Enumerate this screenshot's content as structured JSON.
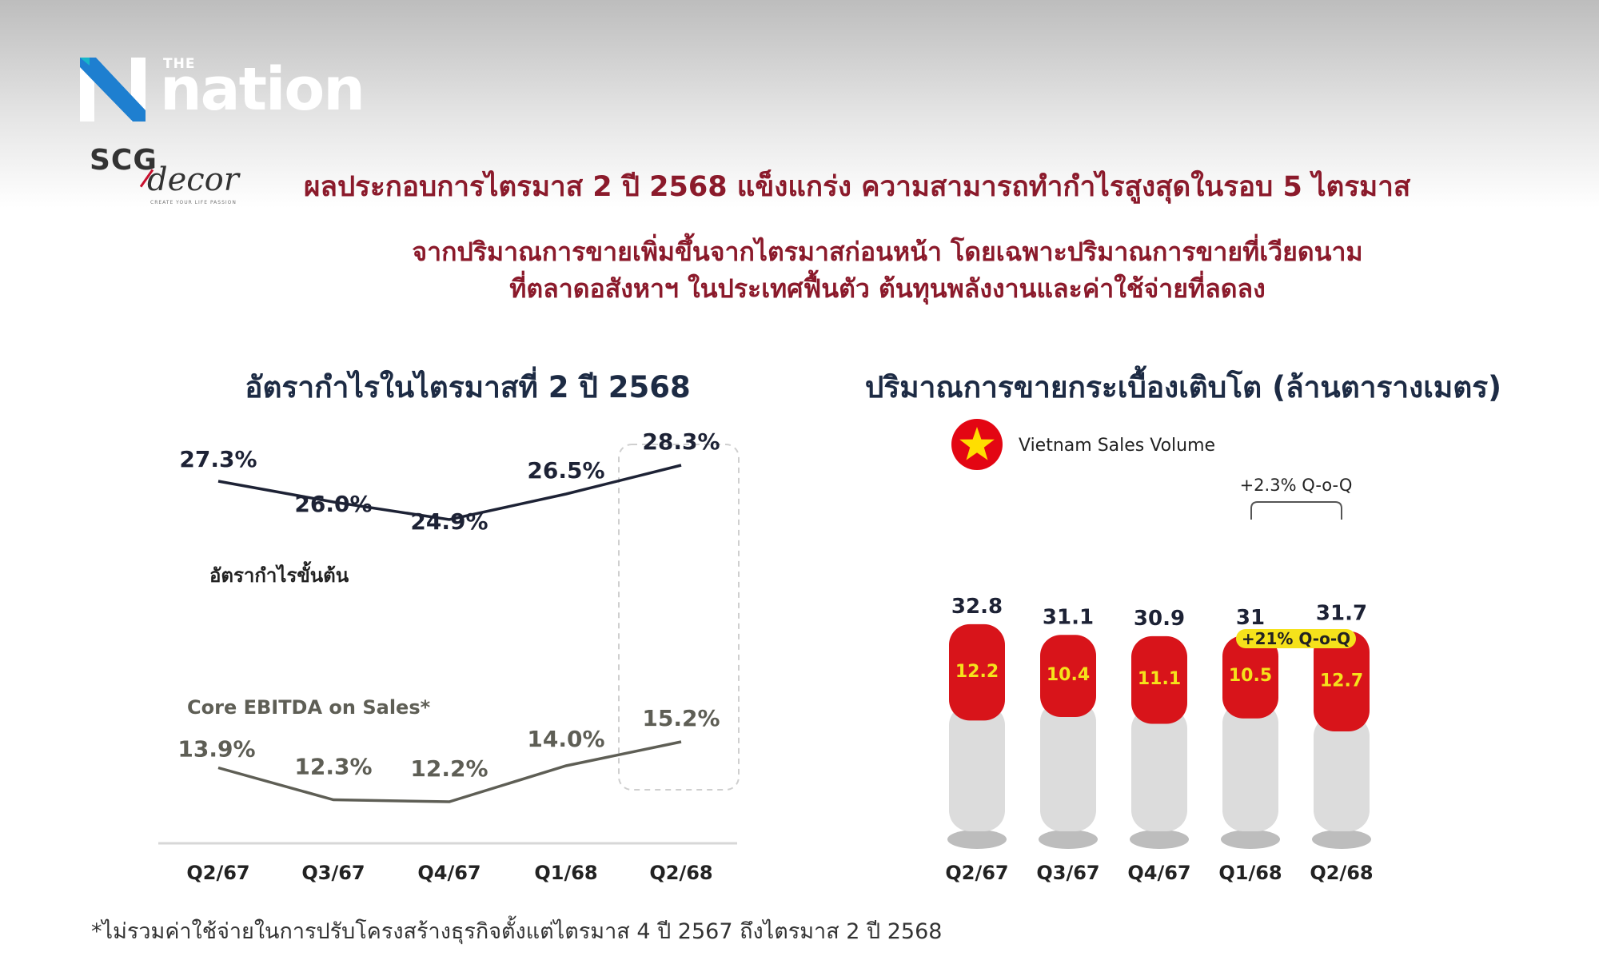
{
  "brand": {
    "the": "THE",
    "name": "nation"
  },
  "company": {
    "scg": "SCG",
    "decor": "decor",
    "tagline": "CREATE YOUR LIFE PASSION"
  },
  "headline": "ผลประกอบการไตรมาส 2 ปี 2568 แข็งแกร่ง ความสามารถทำกำไรสูงสุดในรอบ 5 ไตรมาส",
  "subheadline": [
    "จากปริมาณการขายเพิ่มขึ้นจากไตรมาสก่อนหน้า โดยเฉพาะปริมาณการขายที่เวียดนาม",
    "ที่ตลาดอสังหาฯ ในประเทศฟื้นตัว ต้นทุนพลังงานและค่าใช้จ่ายที่ลดลง"
  ],
  "footnote": "*ไม่รวมค่าใช้จ่ายในการปรับโครงสร้างธุรกิจตั้งแต่ไตรมาส 4 ปี 2567 ถึงไตรมาส 2 ปี 2568",
  "colors": {
    "headline": "#8b1a2b",
    "red": "#d8141a",
    "gray_bar": "#d9d9d9",
    "highlight": "#f5e21b",
    "ebitda_line": "#5e5e55"
  },
  "chart_data": [
    {
      "type": "line",
      "title": "อัตรากำไรในไตรมาสที่ 2 ปี 2568",
      "categories": [
        "Q2/67",
        "Q3/67",
        "Q4/67",
        "Q1/68",
        "Q2/68"
      ],
      "series": [
        {
          "name": "อัตรากำไรขั้นต้น",
          "values": [
            27.3,
            26.0,
            24.9,
            26.5,
            28.3
          ],
          "labels": [
            "27.3%",
            "26.0%",
            "24.9%",
            "26.5%",
            "28.3%"
          ]
        },
        {
          "name": "Core EBITDA on Sales*",
          "values": [
            13.9,
            12.3,
            12.2,
            14.0,
            15.2
          ],
          "labels": [
            "13.9%",
            "12.3%",
            "12.2%",
            "14.0%",
            "15.2%"
          ]
        }
      ],
      "highlight_category": "Q2/68",
      "grid": false
    },
    {
      "type": "bar",
      "title": "ปริมาณการขายกระเบื้องเติบโต (ล้านตารางเมตร)",
      "legend": "Vietnam Sales Volume",
      "categories": [
        "Q2/67",
        "Q3/67",
        "Q4/67",
        "Q1/68",
        "Q2/68"
      ],
      "series": [
        {
          "name": "Total",
          "values": [
            32.8,
            31.1,
            30.9,
            31.0,
            31.7
          ],
          "labels": [
            "32.8",
            "31.1",
            "30.9",
            "31",
            "31.7"
          ]
        },
        {
          "name": "Vietnam Sales Volume",
          "values": [
            12.2,
            10.4,
            11.1,
            10.5,
            12.7
          ],
          "labels": [
            "12.2",
            "10.4",
            "11.1",
            "10.5",
            "12.7"
          ]
        }
      ],
      "annotations": {
        "total_growth": "+2.3% Q-o-Q",
        "vietnam_growth": "+21% Q-o-Q"
      },
      "grid": false
    }
  ]
}
